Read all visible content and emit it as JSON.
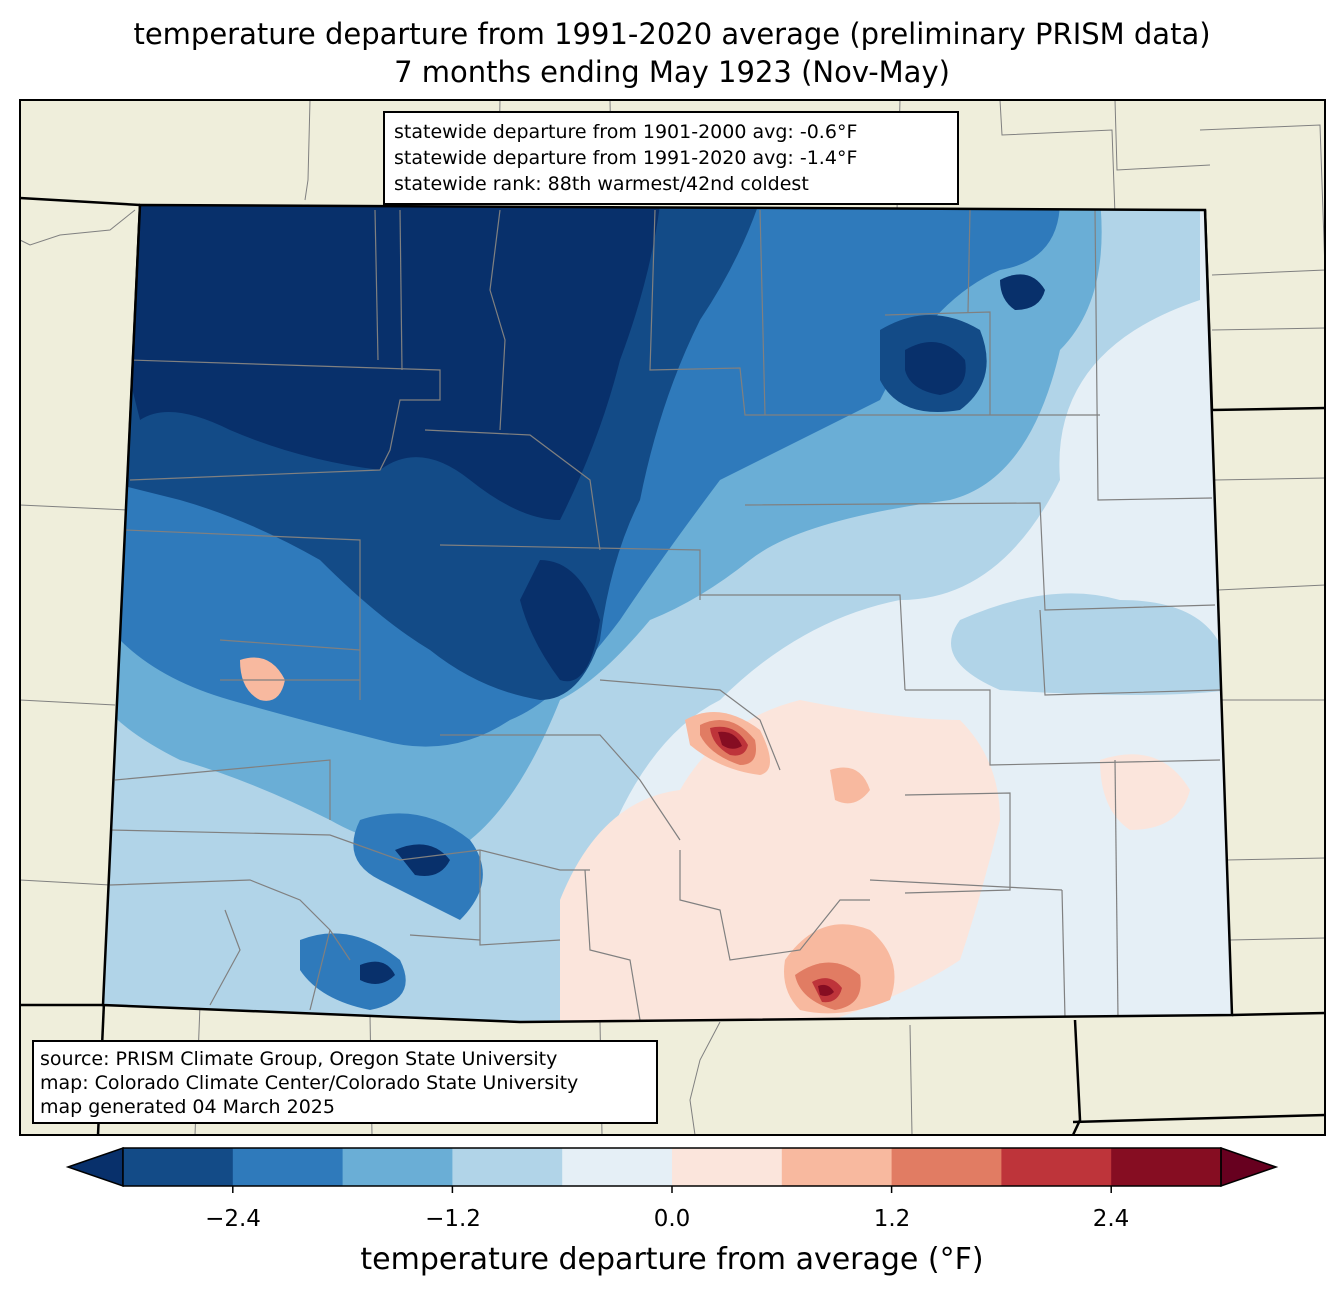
{
  "title": {
    "line1": "temperature departure from 1991-2020 average (preliminary PRISM data)",
    "line2": "7 months ending May 1923 (Nov-May)"
  },
  "stats": {
    "line1": "statewide departure from 1901-2000 avg: -0.6°F",
    "line2": "statewide departure from 1991-2020 avg: -1.4°F",
    "line3": "statewide rank: 88th warmest/42nd coldest"
  },
  "source": {
    "line1": "source: PRISM Climate Group, Oregon State University",
    "line2": "map: Colorado Climate Center/Colorado State University",
    "line3": "map generated 04 March 2025"
  },
  "colorbar": {
    "title": "temperature departure from average (°F)",
    "ticks": [
      "−2.4",
      "−1.2",
      "0.0",
      "1.2",
      "2.4"
    ],
    "levels_min": -3.0,
    "levels_step": 0.6,
    "colors": [
      "#08306b",
      "#134b87",
      "#2f7abb",
      "#6aaed6",
      "#b1d4e8",
      "#e5eff6",
      "#fbe5dc",
      "#f8b99f",
      "#e17c63",
      "#be343a",
      "#860d22",
      "#67001f"
    ]
  },
  "colors": {
    "land_background": "#efeedb",
    "state_border": "#000000",
    "county_border": "#808080"
  }
}
